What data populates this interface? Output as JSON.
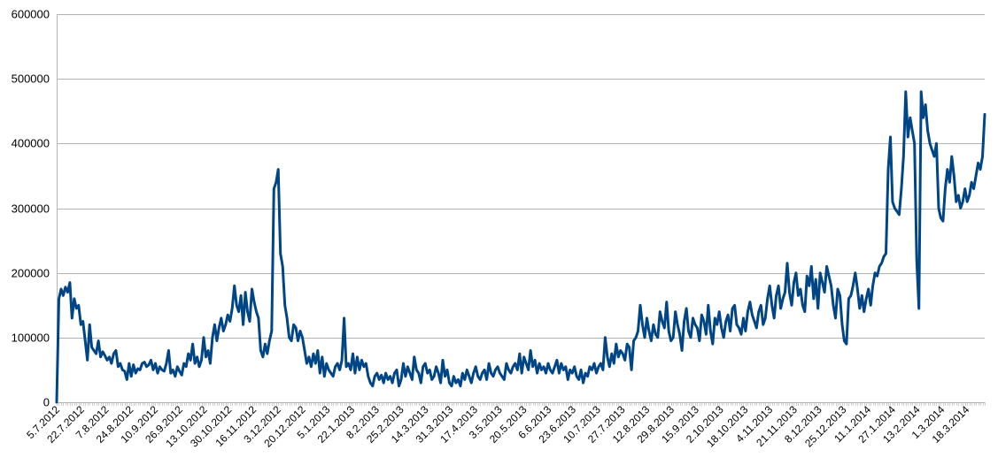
{
  "chart_data": {
    "type": "line",
    "title": "",
    "xlabel": "",
    "ylabel": "",
    "ylim": [
      0,
      600000
    ],
    "yticks": [
      0,
      100000,
      200000,
      300000,
      400000,
      500000,
      600000
    ],
    "grid": "horizontal",
    "legend": "none",
    "line_color": "#004586",
    "x_tick_labels": [
      "5.7.2012",
      "22.7.2012",
      "7.8.2012",
      "24.8.2012",
      "10.9.2012",
      "26.9.2012",
      "13.10.2012",
      "30.10.2012",
      "16.11.2012",
      "3.12.2012",
      "20.12.2012",
      "5.1.2013",
      "22.1.2013",
      "8.2.2013",
      "25.2.2013",
      "14.3.2013",
      "31.3.2013",
      "17.4.2013",
      "3.5.2013",
      "20.5.2013",
      "6.6.2013",
      "23.6.2013",
      "10.7.2013",
      "27.7.2013",
      "12.8.2013",
      "29.8.2013",
      "15.9.2013",
      "2.10.2013",
      "18.10.2013",
      "4.11.2013",
      "21.11.2013",
      "8.12.2013",
      "25.12.2013",
      "11.1.2014",
      "27.1.2014",
      "13.2.2014",
      "1.3.2014",
      "18.3.2014"
    ],
    "series": [
      {
        "x_start": "5.7.2012",
        "x_step_days": 1,
        "values": [
          0,
          160000,
          175000,
          165000,
          178000,
          170000,
          185000,
          130000,
          160000,
          145000,
          150000,
          120000,
          125000,
          95000,
          65000,
          120000,
          85000,
          80000,
          75000,
          95000,
          70000,
          78000,
          72000,
          65000,
          70000,
          60000,
          75000,
          80000,
          55000,
          60000,
          50000,
          48000,
          35000,
          60000,
          40000,
          58000,
          45000,
          52000,
          50000,
          60000,
          62000,
          55000,
          58000,
          65000,
          50000,
          60000,
          45000,
          55000,
          50000,
          48000,
          60000,
          80000,
          45000,
          50000,
          40000,
          55000,
          48000,
          42000,
          60000,
          55000,
          75000,
          65000,
          90000,
          60000,
          70000,
          55000,
          65000,
          100000,
          70000,
          80000,
          60000,
          100000,
          120000,
          95000,
          115000,
          130000,
          110000,
          120000,
          135000,
          125000,
          145000,
          180000,
          150000,
          140000,
          165000,
          120000,
          170000,
          140000,
          125000,
          175000,
          155000,
          140000,
          130000,
          80000,
          70000,
          90000,
          75000,
          95000,
          110000,
          330000,
          340000,
          360000,
          230000,
          210000,
          150000,
          130000,
          100000,
          95000,
          120000,
          115000,
          95000,
          110000,
          100000,
          80000,
          60000,
          70000,
          55000,
          75000,
          60000,
          80000,
          45000,
          70000,
          40000,
          60000,
          50000,
          45000,
          40000,
          55000,
          60000,
          50000,
          65000,
          130000,
          55000,
          60000,
          50000,
          75000,
          45000,
          70000,
          50000,
          65000,
          55000,
          60000,
          40000,
          30000,
          25000,
          40000,
          45000,
          35000,
          42000,
          30000,
          45000,
          35000,
          40000,
          30000,
          45000,
          50000,
          25000,
          35000,
          60000,
          40000,
          55000,
          45000,
          35000,
          70000,
          50000,
          45000,
          30000,
          55000,
          60000,
          45000,
          50000,
          35000,
          40000,
          55000,
          45000,
          30000,
          65000,
          40000,
          50000,
          30000,
          25000,
          40000,
          30000,
          35000,
          25000,
          45000,
          35000,
          50000,
          40000,
          30000,
          45000,
          55000,
          40000,
          35000,
          45000,
          50000,
          35000,
          60000,
          45000,
          40000,
          50000,
          55000,
          45000,
          40000,
          35000,
          60000,
          50000,
          45000,
          55000,
          60000,
          50000,
          75000,
          45000,
          70000,
          60000,
          50000,
          80000,
          55000,
          65000,
          45000,
          60000,
          50000,
          55000,
          45000,
          60000,
          50000,
          45000,
          55000,
          65000,
          45000,
          60000,
          50000,
          55000,
          35000,
          50000,
          45000,
          55000,
          40000,
          35000,
          50000,
          30000,
          45000,
          40000,
          55000,
          50000,
          60000,
          45000,
          55000,
          60000,
          50000,
          100000,
          70000,
          55000,
          75000,
          60000,
          90000,
          70000,
          80000,
          75000,
          65000,
          90000,
          85000,
          50000,
          95000,
          100000,
          110000,
          150000,
          120000,
          100000,
          130000,
          110000,
          95000,
          120000,
          105000,
          100000,
          140000,
          125000,
          115000,
          155000,
          110000,
          95000,
          100000,
          140000,
          120000,
          105000,
          80000,
          125000,
          145000,
          110000,
          100000,
          130000,
          120000,
          115000,
          95000,
          135000,
          125000,
          105000,
          150000,
          110000,
          90000,
          130000,
          120000,
          140000,
          115000,
          100000,
          125000,
          135000,
          110000,
          145000,
          150000,
          120000,
          115000,
          105000,
          130000,
          110000,
          140000,
          155000,
          135000,
          125000,
          115000,
          140000,
          150000,
          120000,
          130000,
          160000,
          180000,
          150000,
          130000,
          165000,
          180000,
          145000,
          160000,
          170000,
          215000,
          170000,
          150000,
          185000,
          200000,
          165000,
          175000,
          150000,
          140000,
          195000,
          180000,
          210000,
          160000,
          190000,
          145000,
          200000,
          185000,
          170000,
          210000,
          195000,
          180000,
          150000,
          130000,
          175000,
          165000,
          120000,
          95000,
          90000,
          160000,
          165000,
          180000,
          200000,
          175000,
          145000,
          165000,
          140000,
          160000,
          175000,
          150000,
          180000,
          200000,
          195000,
          210000,
          215000,
          225000,
          230000,
          360000,
          410000,
          310000,
          300000,
          295000,
          290000,
          330000,
          380000,
          480000,
          410000,
          440000,
          420000,
          400000,
          220000,
          145000,
          480000,
          440000,
          460000,
          420000,
          400000,
          390000,
          380000,
          400000,
          300000,
          285000,
          280000,
          330000,
          360000,
          340000,
          380000,
          350000,
          310000,
          320000,
          300000,
          310000,
          330000,
          310000,
          320000,
          340000,
          330000,
          350000,
          370000,
          360000,
          380000,
          445000
        ]
      }
    ]
  }
}
